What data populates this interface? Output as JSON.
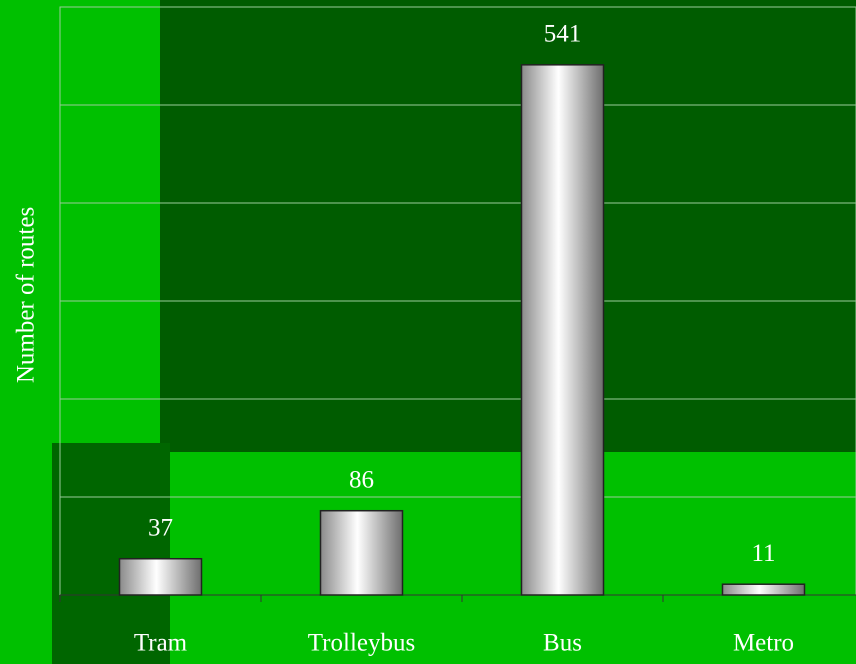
{
  "chart_data": {
    "type": "bar",
    "ylabel": "Number of routes",
    "categories": [
      "Tram",
      "Trolleybus",
      "Bus",
      "Metro"
    ],
    "values": [
      37,
      86,
      541,
      11
    ],
    "ylim": [
      0,
      600
    ],
    "yticks": [
      0,
      100,
      200,
      300,
      400,
      500,
      600
    ],
    "grid": true
  }
}
